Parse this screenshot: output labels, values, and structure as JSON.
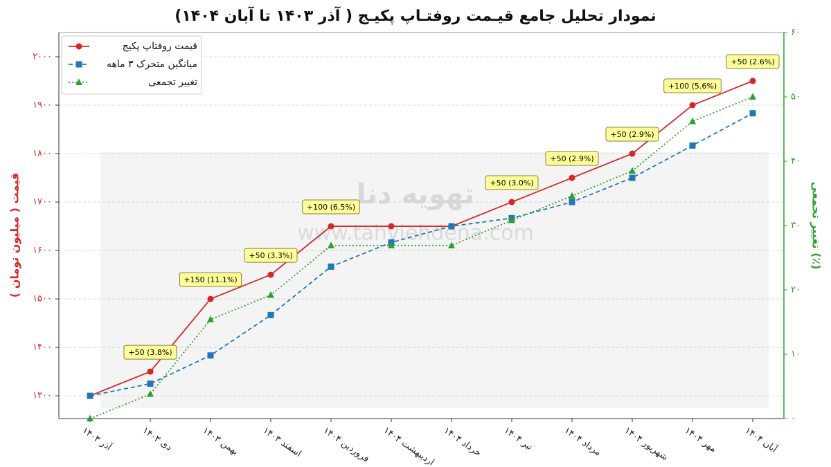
{
  "chart_data": {
    "type": "line",
    "title": "نمودار تحلیل جامع قیـمت روفتـاپ پکیـج ( آذر ۱۴۰۳ تا آبان ۱۴۰۴)",
    "ylabel": "قیمت ( میلیون تومان )",
    "y2label": "تغییر تجمعی (٪)",
    "watermark": [
      "تهویه دنا",
      "www.tahviehdena.com"
    ],
    "categories": [
      "آذر ۱۴۰۳",
      "دی ۱۴۰۳",
      "بهمن ۱۴۰۳",
      "اسفند ۱۴۰۳",
      "فروردین ۱۴۰۴",
      "اردیبهشت ۱۴۰۴",
      "خرداد ۱۴۰۴",
      "تیر ۱۴۰۴",
      "مرداد ۱۴۰۴",
      "شهریور ۱۴۰۴",
      "مهر ۱۴۰۴",
      "آبان ۱۴۰۴"
    ],
    "series": [
      {
        "name": "قیمت روفتاپ پکیج",
        "color": "#d62728",
        "marker": "circle",
        "dash": "solid",
        "values": [
          1300,
          1350,
          1500,
          1550,
          1650,
          1650,
          1650,
          1700,
          1750,
          1800,
          1900,
          1950
        ]
      },
      {
        "name": "میانگین متحرک ۳ ماهه",
        "color": "#1f77b4",
        "marker": "square",
        "dash": "dashed",
        "values": [
          1300,
          1325,
          1383.3,
          1466.7,
          1566.7,
          1616.7,
          1650,
          1666.7,
          1700,
          1750,
          1816.7,
          1883.3
        ]
      },
      {
        "name": "تغییر تجمعی",
        "color": "#2ca02c",
        "marker": "triangle",
        "dash": "dotted",
        "axis": "y2",
        "values": [
          0,
          3.8,
          15.4,
          19.2,
          26.9,
          26.9,
          26.9,
          30.8,
          34.6,
          38.5,
          46.2,
          50.0
        ]
      }
    ],
    "annotations": [
      {
        "x": "دی ۱۴۰۳",
        "text": "+50 (3.8%)"
      },
      {
        "x": "بهمن ۱۴۰۳",
        "text": "+150 (11.1%)"
      },
      {
        "x": "اسفند ۱۴۰۳",
        "text": "+50 (3.3%)"
      },
      {
        "x": "فروردین ۱۴۰۴",
        "text": "+100 (6.5%)"
      },
      {
        "x": "تیر ۱۴۰۴",
        "text": "+50 (3.0%)"
      },
      {
        "x": "مرداد ۱۴۰۴",
        "text": "+50 (2.9%)"
      },
      {
        "x": "شهریور ۱۴۰۴",
        "text": "+50 (2.9%)"
      },
      {
        "x": "مهر ۱۴۰۴",
        "text": "+100 (5.6%)"
      },
      {
        "x": "آبان ۱۴۰۴",
        "text": "+50 (2.6%)"
      }
    ],
    "ylim": [
      1253,
      2050
    ],
    "yticks": [
      {
        "value": 1300,
        "label": "۱۳۰۰"
      },
      {
        "value": 1400,
        "label": "۱۴۰۰"
      },
      {
        "value": 1500,
        "label": "۱۵۰۰"
      },
      {
        "value": 1600,
        "label": "۱۶۰۰"
      },
      {
        "value": 1700,
        "label": "۱۷۰۰"
      },
      {
        "value": 1800,
        "label": "۱۸۰۰"
      },
      {
        "value": 1900,
        "label": "۱۹۰۰"
      },
      {
        "value": 2000,
        "label": "۲۰۰۰"
      }
    ],
    "y2lim": [
      0,
      60
    ],
    "y2ticks": [
      {
        "value": 0,
        "label": "۰"
      },
      {
        "value": 10,
        "label": "۱۰"
      },
      {
        "value": 20,
        "label": "۲۰"
      },
      {
        "value": 30,
        "label": "۳۰"
      },
      {
        "value": 40,
        "label": "۴۰"
      },
      {
        "value": 50,
        "label": "۵۰"
      },
      {
        "value": 60,
        "label": "۶۰"
      }
    ],
    "ycolor": "#d62728",
    "y2color": "#2ca02c",
    "grid": true,
    "legend": "upper-left"
  }
}
